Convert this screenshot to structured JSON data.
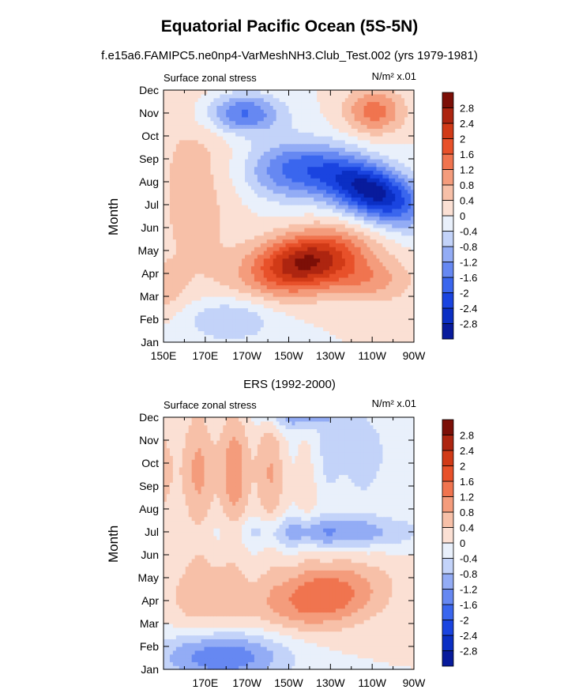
{
  "title": "Equatorial Pacific Ocean (5S-5N)",
  "subtitle": "f.e15a6.FAMIPC5.ne0np4-VarMeshNH3.Club_Test.002 (yrs 1979-1981)",
  "panels": [
    {
      "center_title": "",
      "left_label": "Surface zonal stress",
      "right_label": "N/m² x.01",
      "ylabel": "Month"
    },
    {
      "center_title": "ERS (1992-2000)",
      "left_label": "Surface zonal stress",
      "right_label": "N/m² x.01",
      "ylabel": "Month"
    }
  ],
  "chart_data": [
    {
      "type": "heatmap",
      "title": "Equatorial Pacific Ocean (5S-5N)",
      "subtitle": "f.e15a6.FAMIPC5.ne0np4-VarMeshNH3.Club_Test.002 (yrs 1979-1981)",
      "left_label": "Surface zonal stress",
      "units": "N/m² x.01",
      "ylabel": "Month",
      "xlim_deg_east": [
        150,
        270
      ],
      "x_ticks": [
        150,
        170,
        190,
        210,
        230,
        250,
        270
      ],
      "x_tick_labels": [
        "150E",
        "170E",
        "170W",
        "150W",
        "130W",
        "110W",
        "90W"
      ],
      "y_tick_labels": [
        "Jan",
        "Feb",
        "Mar",
        "Apr",
        "May",
        "Jun",
        "Jul",
        "Aug",
        "Sep",
        "Oct",
        "Nov",
        "Dec"
      ],
      "colorbar_levels": [
        -2.8,
        -2.4,
        -2,
        -1.6,
        -1.2,
        -0.8,
        -0.4,
        0,
        0.4,
        0.8,
        1.2,
        1.6,
        2,
        2.4,
        2.8
      ],
      "colorbar_labels": [
        "2.8",
        "2.4",
        "2",
        "1.6",
        "1.2",
        "0.8",
        "0.4",
        "0",
        "-0.4",
        "-0.8",
        "-1.2",
        "-1.6",
        "-2",
        "-2.4",
        "-2.8"
      ],
      "colors": [
        "#081b9c",
        "#0b2fc4",
        "#1a44e0",
        "#3a66ee",
        "#6688f2",
        "#93acf5",
        "#c3d3f9",
        "#e9f0fb",
        "#fbe0d4",
        "#f7c0a8",
        "#f49c7c",
        "#f0744f",
        "#e8512a",
        "#d13a17",
        "#ad2510",
        "#7c0f07"
      ],
      "features": [
        {
          "kind": "positive",
          "peak": 2.8,
          "lon_range": [
            200,
            250
          ],
          "months": [
            "Mar",
            "Apr",
            "May"
          ]
        },
        {
          "kind": "negative",
          "peak": -2.8,
          "lon_range": [
            210,
            265
          ],
          "months": [
            "Jun",
            "Jul",
            "Aug",
            "Sep"
          ]
        },
        {
          "kind": "negative",
          "peak": -1.6,
          "lon_range": [
            175,
            200
          ],
          "months": [
            "Nov"
          ]
        },
        {
          "kind": "positive",
          "peak": 1.2,
          "lon_range": [
            240,
            262
          ],
          "months": [
            "Nov",
            "Dec"
          ]
        }
      ]
    },
    {
      "type": "heatmap",
      "title": "ERS (1992-2000)",
      "left_label": "Surface zonal stress",
      "units": "N/m² x.01",
      "ylabel": "Month",
      "xlim_deg_east": [
        150,
        270
      ],
      "x_ticks": [
        170,
        190,
        210,
        230,
        250,
        270
      ],
      "x_tick_labels": [
        "170E",
        "170W",
        "150W",
        "130W",
        "110W",
        "90W"
      ],
      "y_tick_labels": [
        "Jan",
        "Feb",
        "Mar",
        "Apr",
        "May",
        "Jun",
        "Jul",
        "Aug",
        "Sep",
        "Oct",
        "Nov",
        "Dec"
      ],
      "colorbar_levels": [
        -2.8,
        -2.4,
        -2,
        -1.6,
        -1.2,
        -0.8,
        -0.4,
        0,
        0.4,
        0.8,
        1.2,
        1.6,
        2,
        2.4,
        2.8
      ],
      "colorbar_labels": [
        "2.8",
        "2.4",
        "2",
        "1.6",
        "1.2",
        "0.8",
        "0.4",
        "0",
        "-0.4",
        "-0.8",
        "-1.2",
        "-1.6",
        "-2",
        "-2.4",
        "-2.8"
      ],
      "colors": [
        "#081b9c",
        "#0b2fc4",
        "#1a44e0",
        "#3a66ee",
        "#6688f2",
        "#93acf5",
        "#c3d3f9",
        "#e9f0fb",
        "#fbe0d4",
        "#f7c0a8",
        "#f49c7c",
        "#f0744f",
        "#e8512a",
        "#d13a17",
        "#ad2510",
        "#7c0f07"
      ],
      "features": [
        {
          "kind": "positive",
          "peak": 1.6,
          "lon_range": [
            205,
            255
          ],
          "months": [
            "Mar",
            "Apr",
            "May"
          ]
        },
        {
          "kind": "negative",
          "peak": -1.2,
          "lon_range": [
            205,
            262
          ],
          "months": [
            "Jul"
          ]
        },
        {
          "kind": "negative",
          "peak": -1.6,
          "lon_range": [
            155,
            205
          ],
          "months": [
            "Jan",
            "Feb"
          ]
        },
        {
          "kind": "positive",
          "peak": 0.8,
          "lon_range": [
            152,
            220
          ],
          "months": [
            "Sep",
            "Oct",
            "Nov",
            "Dec"
          ]
        },
        {
          "kind": "negative",
          "peak": -0.8,
          "lon_range": [
            210,
            260
          ],
          "months": [
            "Oct",
            "Nov",
            "Dec"
          ]
        }
      ]
    }
  ]
}
